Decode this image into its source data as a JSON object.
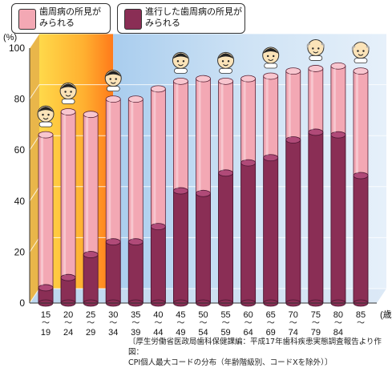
{
  "chart_data": {
    "type": "bar",
    "title": "",
    "ylabel": "(%)",
    "xunit": "(歳)",
    "ylim": [
      0,
      100
    ],
    "yticks": [
      0,
      20,
      40,
      60,
      80,
      100
    ],
    "categories": [
      {
        "id": "15-19",
        "top": "15",
        "bottom": "19"
      },
      {
        "id": "20-24",
        "top": "20",
        "bottom": "24"
      },
      {
        "id": "25-29",
        "top": "25",
        "bottom": "29"
      },
      {
        "id": "30-34",
        "top": "30",
        "bottom": "34"
      },
      {
        "id": "35-39",
        "top": "35",
        "bottom": "39"
      },
      {
        "id": "40-44",
        "top": "40",
        "bottom": "44"
      },
      {
        "id": "45-49",
        "top": "45",
        "bottom": "49"
      },
      {
        "id": "50-54",
        "top": "50",
        "bottom": "54"
      },
      {
        "id": "55-59",
        "top": "55",
        "bottom": "59"
      },
      {
        "id": "60-64",
        "top": "60",
        "bottom": "64"
      },
      {
        "id": "65-69",
        "top": "65",
        "bottom": "69"
      },
      {
        "id": "70-74",
        "top": "70",
        "bottom": "74"
      },
      {
        "id": "75-79",
        "top": "75",
        "bottom": "79"
      },
      {
        "id": "80-84",
        "top": "80",
        "bottom": "84"
      },
      {
        "id": "85-",
        "top": "85",
        "bottom": ""
      }
    ],
    "series": [
      {
        "name": "歯周病の所見が\nみられる",
        "color": "#f3a8b4",
        "values": [
          66,
          75,
          74,
          80,
          80,
          84,
          87,
          88,
          87,
          88,
          89,
          91,
          92,
          93,
          91
        ]
      },
      {
        "name": "進行した歯周病の所見が\nみられる",
        "color": "#8a2e55",
        "values": [
          6,
          10,
          19,
          24,
          24,
          30,
          44,
          43,
          51,
          55,
          57,
          64,
          67,
          66,
          50
        ]
      }
    ],
    "grid": true,
    "legend_position": "top-left",
    "background_colors": {
      "youth": "#ffe06a",
      "youth_edge": "#ff8a1c",
      "adult": "#cfe3f5"
    }
  },
  "source_note": "〔厚生労働省医政局歯科保健課編：平成17年歯科疾患実態調査報告より作図：\n CPI個人最大コードの分布（年齢階級別、コードXを除外）〕"
}
